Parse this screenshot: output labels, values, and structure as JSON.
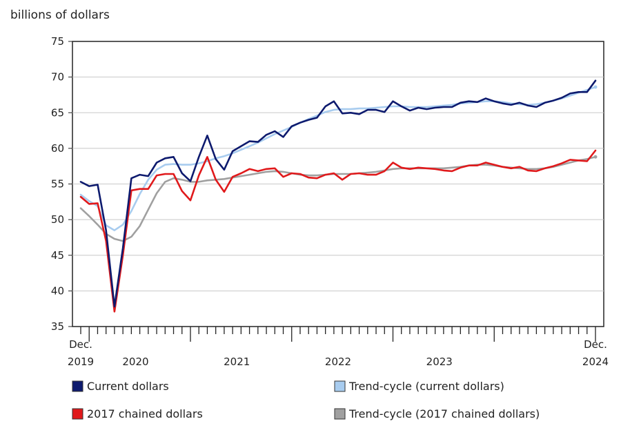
{
  "chart_data": {
    "type": "line",
    "unit_label": "billions of dollars",
    "ylim": [
      35,
      75
    ],
    "y_ticks": [
      "35",
      "40",
      "45",
      "50",
      "55",
      "60",
      "65",
      "70",
      "75"
    ],
    "x_start": "Dec. 2019",
    "x_end": "Dec. 2024",
    "x_labels": [
      {
        "line1": "Dec.",
        "line2": "2019"
      },
      {
        "line1": "",
        "line2": "2020"
      },
      {
        "line1": "",
        "line2": "2021"
      },
      {
        "line1": "",
        "line2": "2022"
      },
      {
        "line1": "",
        "line2": "2023"
      },
      {
        "line1": "Dec.",
        "line2": "2024"
      }
    ],
    "legend_position": "bottom",
    "series": [
      {
        "name": "Current dollars",
        "color": "#0d1a6e",
        "values": [
          55.3,
          54.7,
          54.9,
          48.5,
          37.8,
          46.0,
          55.8,
          56.3,
          56.1,
          58.0,
          58.6,
          58.8,
          56.5,
          55.4,
          58.8,
          61.8,
          58.5,
          57.0,
          59.6,
          60.3,
          61.0,
          60.9,
          61.9,
          62.4,
          61.6,
          63.1,
          63.6,
          64.0,
          64.3,
          65.9,
          66.6,
          64.9,
          65.0,
          64.8,
          65.4,
          65.4,
          65.1,
          66.6,
          65.9,
          65.3,
          65.7,
          65.5,
          65.7,
          65.8,
          65.8,
          66.4,
          66.6,
          66.5,
          67.0,
          66.6,
          66.3,
          66.1,
          66.4,
          66.0,
          65.8,
          66.4,
          66.7,
          67.1,
          67.7,
          67.9,
          67.9,
          69.5
        ]
      },
      {
        "name": "Trend-cycle (current dollars)",
        "color": "#a8ccef",
        "values": [
          53.5,
          52.6,
          51.9,
          49.2,
          48.5,
          49.3,
          51.2,
          53.6,
          55.6,
          57.0,
          57.7,
          57.8,
          57.7,
          57.7,
          57.9,
          58.2,
          58.6,
          58.9,
          59.3,
          59.8,
          60.3,
          60.8,
          61.4,
          62.0,
          62.5,
          63.0,
          63.6,
          64.1,
          64.6,
          65.1,
          65.4,
          65.5,
          65.5,
          65.6,
          65.6,
          65.7,
          65.8,
          65.9,
          65.9,
          65.8,
          65.8,
          65.8,
          65.9,
          66.0,
          66.1,
          66.3,
          66.4,
          66.5,
          66.6,
          66.6,
          66.5,
          66.3,
          66.2,
          66.1,
          66.2,
          66.4,
          66.7,
          67.0,
          67.4,
          67.8,
          68.2,
          68.6
        ]
      },
      {
        "name": "2017 chained dollars",
        "color": "#e0191b",
        "values": [
          53.2,
          52.2,
          52.3,
          47.0,
          37.1,
          45.0,
          54.1,
          54.3,
          54.3,
          56.2,
          56.4,
          56.4,
          54.0,
          52.7,
          56.2,
          58.8,
          55.6,
          53.9,
          56.0,
          56.5,
          57.1,
          56.8,
          57.1,
          57.2,
          56.0,
          56.5,
          56.4,
          55.9,
          55.8,
          56.3,
          56.5,
          55.6,
          56.4,
          56.5,
          56.3,
          56.3,
          56.8,
          58.0,
          57.3,
          57.1,
          57.3,
          57.2,
          57.1,
          56.9,
          56.8,
          57.3,
          57.6,
          57.6,
          58.0,
          57.7,
          57.4,
          57.2,
          57.4,
          56.9,
          56.8,
          57.2,
          57.5,
          57.9,
          58.4,
          58.3,
          58.2,
          59.7
        ]
      },
      {
        "name": "Trend-cycle (2017 chained dollars)",
        "color": "#a0a0a0",
        "values": [
          51.6,
          50.5,
          49.3,
          48.0,
          47.3,
          47.0,
          47.6,
          49.1,
          51.4,
          53.7,
          55.3,
          55.8,
          55.6,
          55.3,
          55.3,
          55.5,
          55.6,
          55.7,
          55.9,
          56.1,
          56.3,
          56.5,
          56.7,
          56.8,
          56.7,
          56.5,
          56.3,
          56.2,
          56.2,
          56.3,
          56.4,
          56.4,
          56.4,
          56.5,
          56.6,
          56.7,
          56.9,
          57.1,
          57.2,
          57.2,
          57.2,
          57.2,
          57.2,
          57.2,
          57.3,
          57.4,
          57.6,
          57.7,
          57.7,
          57.6,
          57.4,
          57.3,
          57.2,
          57.1,
          57.1,
          57.2,
          57.4,
          57.7,
          58.0,
          58.3,
          58.5,
          58.8
        ]
      }
    ]
  }
}
